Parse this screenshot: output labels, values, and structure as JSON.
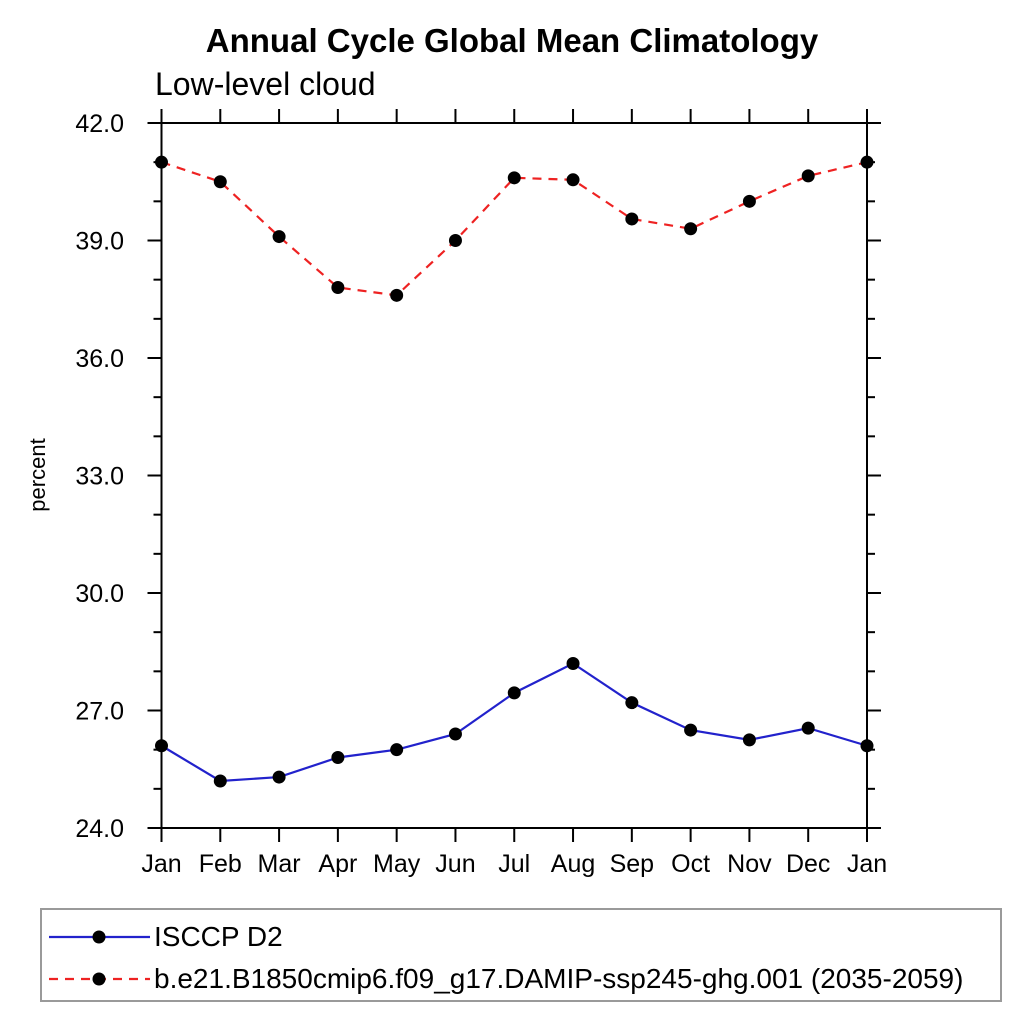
{
  "chart_data": {
    "type": "line",
    "title": "Annual Cycle Global Mean Climatology",
    "subtitle": "Low-level cloud",
    "xlabel": "",
    "ylabel": "percent",
    "categories": [
      "Jan",
      "Feb",
      "Mar",
      "Apr",
      "May",
      "Jun",
      "Jul",
      "Aug",
      "Sep",
      "Oct",
      "Nov",
      "Dec",
      "Jan"
    ],
    "ylim": [
      24.0,
      42.0
    ],
    "y_major_ticks": [
      24.0,
      27.0,
      30.0,
      33.0,
      36.0,
      39.0,
      42.0
    ],
    "y_minor_interval": 1.0,
    "grid": false,
    "legend_position": "bottom",
    "axis_color": "#000000",
    "legend_border_color": "#9a9a9a",
    "marker_color": "#000000",
    "series": [
      {
        "name": "ISCCP D2",
        "color": "#2222cc",
        "line_style": "solid",
        "marker": "circle",
        "values": [
          26.1,
          25.2,
          25.3,
          25.8,
          26.0,
          26.4,
          27.45,
          28.2,
          27.2,
          26.5,
          26.25,
          26.55,
          26.1
        ]
      },
      {
        "name": "b.e21.B1850cmip6.f09_g17.DAMIP-ssp245-ghg.001 (2035-2059)",
        "color": "#ee2222",
        "line_style": "dashed",
        "marker": "circle",
        "values": [
          41.0,
          40.5,
          39.1,
          37.8,
          37.6,
          39.0,
          40.6,
          40.55,
          39.55,
          39.3,
          40.0,
          40.65,
          41.0
        ]
      }
    ]
  }
}
